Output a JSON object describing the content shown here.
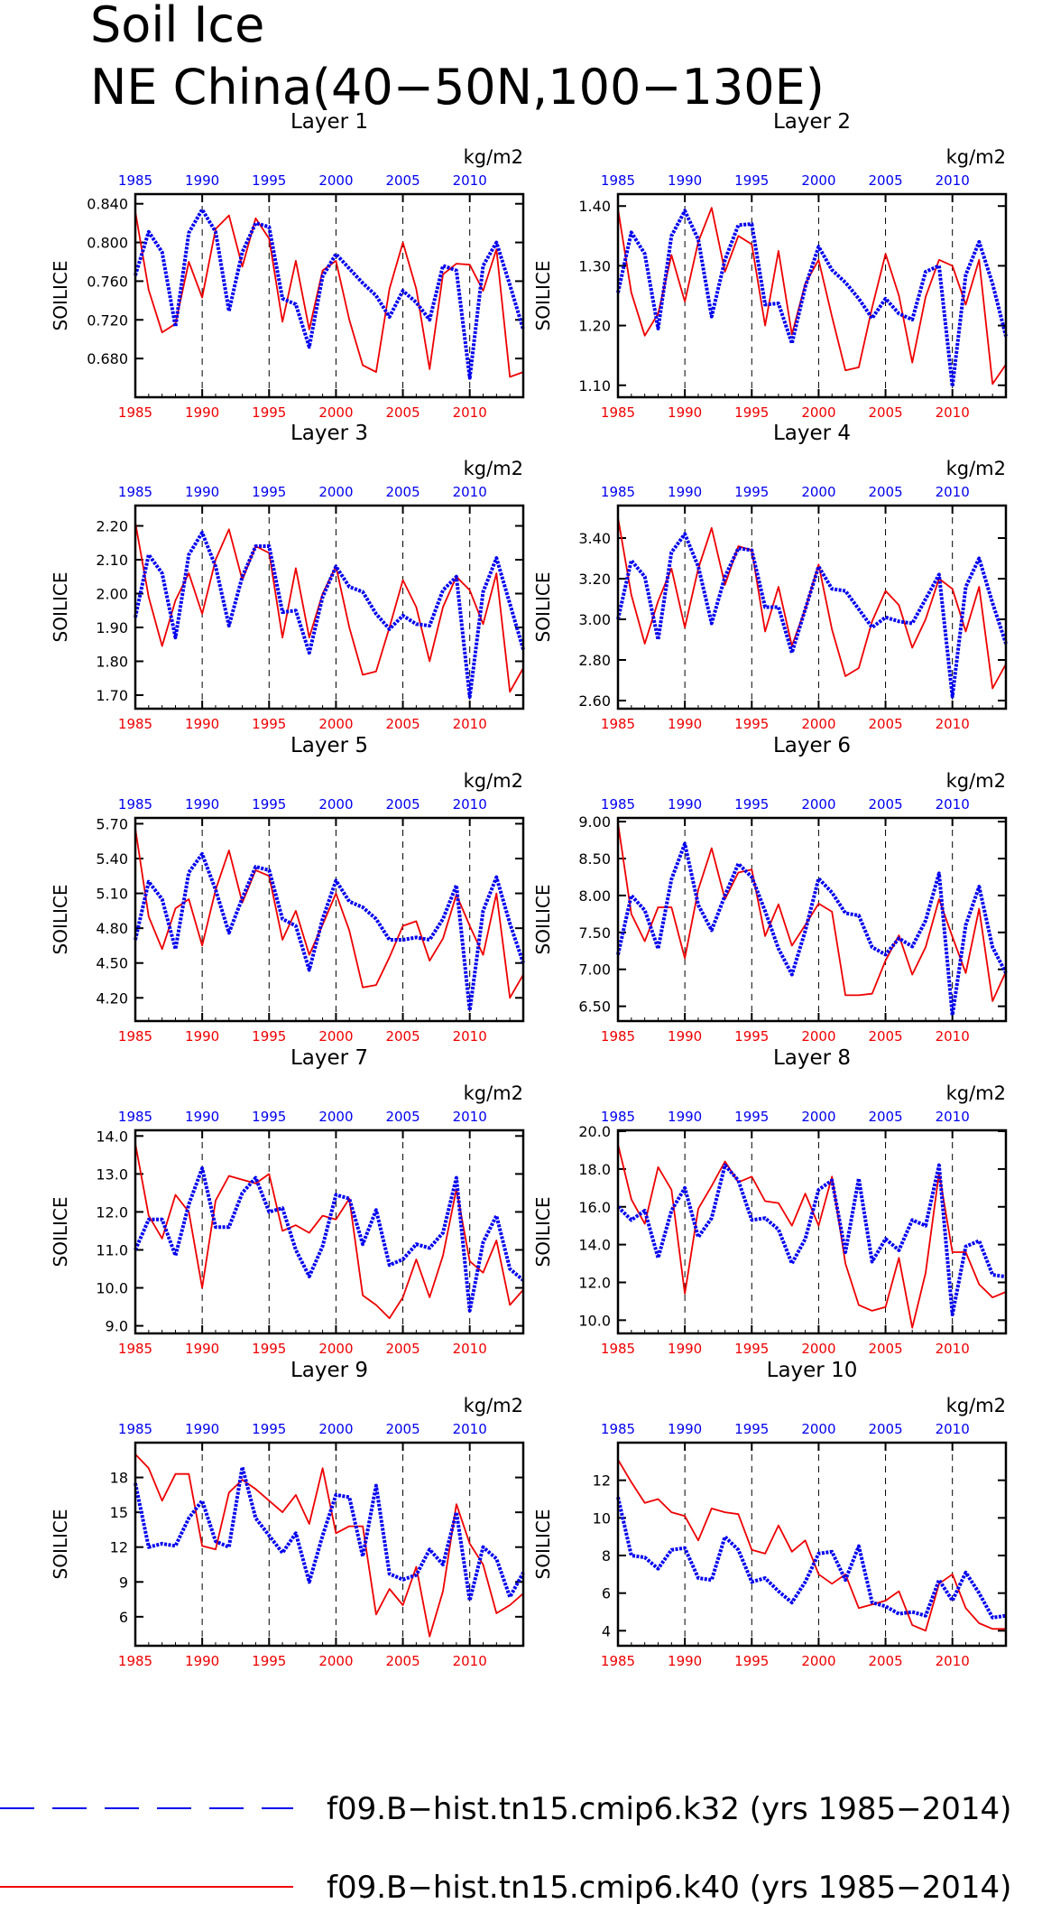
{
  "title": {
    "line1": "Soil Ice",
    "line2": "NE China(40−50N,100−130E)"
  },
  "legend": [
    {
      "label": "f09.B−hist.tn15.cmip6.k32 (yrs 1985−2014)",
      "color": "#0000ee",
      "style": "dashed"
    },
    {
      "label": "f09.B−hist.tn15.cmip6.k40 (yrs 1985−2014)",
      "color": "#ee0000",
      "style": "solid"
    }
  ],
  "chart_data": [
    {
      "type": "line",
      "title": "Layer 1",
      "ylabel": "SOILICE",
      "units": "kg/m2",
      "x_start": 1985,
      "xlim": [
        1985,
        2014
      ],
      "xticks": [
        "1985",
        "1990",
        "1995",
        "2000",
        "2005",
        "2010"
      ],
      "ylim": [
        0.64,
        0.85
      ],
      "yticks": [
        "0.680",
        "0.720",
        "0.760",
        "0.800",
        "0.840"
      ],
      "series": [
        {
          "color": "#0000ee",
          "values": [
            0.766,
            0.811,
            0.79,
            0.713,
            0.81,
            0.834,
            0.811,
            0.729,
            0.79,
            0.82,
            0.816,
            0.742,
            0.736,
            0.692,
            0.765,
            0.788,
            0.773,
            0.758,
            0.745,
            0.723,
            0.75,
            0.738,
            0.72,
            0.776,
            0.771,
            0.66,
            0.776,
            0.8,
            0.756,
            0.71
          ]
        },
        {
          "color": "#ee0000",
          "values": [
            0.832,
            0.751,
            0.707,
            0.716,
            0.78,
            0.743,
            0.814,
            0.828,
            0.775,
            0.825,
            0.804,
            0.718,
            0.781,
            0.71,
            0.771,
            0.781,
            0.72,
            0.673,
            0.666,
            0.752,
            0.8,
            0.752,
            0.669,
            0.767,
            0.778,
            0.777,
            0.75,
            0.793,
            0.661,
            0.666
          ]
        }
      ]
    },
    {
      "type": "line",
      "title": "Layer 2",
      "ylabel": "SOILICE",
      "units": "kg/m2",
      "x_start": 1985,
      "xlim": [
        1985,
        2014
      ],
      "xticks": [
        "1985",
        "1990",
        "1995",
        "2000",
        "2005",
        "2010"
      ],
      "ylim": [
        1.08,
        1.42
      ],
      "yticks": [
        "1.10",
        "1.20",
        "1.30",
        "1.40"
      ],
      "series": [
        {
          "color": "#0000ee",
          "values": [
            1.255,
            1.356,
            1.32,
            1.195,
            1.35,
            1.392,
            1.344,
            1.215,
            1.31,
            1.368,
            1.37,
            1.235,
            1.237,
            1.17,
            1.265,
            1.332,
            1.293,
            1.272,
            1.245,
            1.212,
            1.245,
            1.22,
            1.21,
            1.29,
            1.3,
            1.098,
            1.285,
            1.34,
            1.27,
            1.182
          ]
        },
        {
          "color": "#ee0000",
          "values": [
            1.395,
            1.255,
            1.183,
            1.22,
            1.318,
            1.24,
            1.34,
            1.397,
            1.29,
            1.35,
            1.336,
            1.2,
            1.325,
            1.185,
            1.27,
            1.31,
            1.215,
            1.125,
            1.13,
            1.23,
            1.32,
            1.25,
            1.138,
            1.248,
            1.31,
            1.3,
            1.235,
            1.31,
            1.102,
            1.135
          ]
        }
      ]
    },
    {
      "type": "line",
      "title": "Layer 3",
      "ylabel": "SOILICE",
      "units": "kg/m2",
      "x_start": 1985,
      "xlim": [
        1985,
        2014
      ],
      "xticks": [
        "1985",
        "1990",
        "1995",
        "2000",
        "2005",
        "2010"
      ],
      "ylim": [
        1.66,
        2.26
      ],
      "yticks": [
        "1.70",
        "1.80",
        "1.90",
        "2.00",
        "2.10",
        "2.20"
      ],
      "series": [
        {
          "color": "#0000ee",
          "values": [
            1.93,
            2.115,
            2.06,
            1.87,
            2.115,
            2.18,
            2.08,
            1.905,
            2.05,
            2.14,
            2.14,
            1.945,
            1.95,
            1.825,
            1.99,
            2.08,
            2.02,
            2.005,
            1.94,
            1.895,
            1.935,
            1.91,
            1.905,
            2.01,
            2.05,
            1.695,
            2.005,
            2.105,
            1.97,
            1.835
          ]
        },
        {
          "color": "#ee0000",
          "values": [
            2.21,
            1.99,
            1.845,
            1.98,
            2.06,
            1.94,
            2.1,
            2.19,
            2.04,
            2.14,
            2.12,
            1.87,
            2.075,
            1.87,
            2.0,
            2.08,
            1.9,
            1.76,
            1.77,
            1.9,
            2.04,
            1.96,
            1.8,
            1.96,
            2.05,
            2.01,
            1.91,
            2.06,
            1.71,
            1.78
          ]
        }
      ]
    },
    {
      "type": "line",
      "title": "Layer 4",
      "ylabel": "SOILICE",
      "units": "kg/m2",
      "x_start": 1985,
      "xlim": [
        1985,
        2014
      ],
      "xticks": [
        "1985",
        "1990",
        "1995",
        "2000",
        "2005",
        "2010"
      ],
      "ylim": [
        2.56,
        3.56
      ],
      "yticks": [
        "2.60",
        "2.80",
        "3.00",
        "3.20",
        "3.40"
      ],
      "series": [
        {
          "color": "#0000ee",
          "values": [
            3.0,
            3.29,
            3.21,
            2.9,
            3.33,
            3.42,
            3.26,
            2.98,
            3.21,
            3.35,
            3.34,
            3.06,
            3.06,
            2.835,
            3.05,
            3.26,
            3.15,
            3.14,
            3.05,
            2.96,
            3.01,
            2.99,
            2.98,
            3.1,
            3.22,
            2.62,
            3.16,
            3.3,
            3.08,
            2.88
          ]
        },
        {
          "color": "#ee0000",
          "values": [
            3.5,
            3.12,
            2.88,
            3.09,
            3.25,
            2.96,
            3.25,
            3.45,
            3.17,
            3.36,
            3.34,
            2.94,
            3.16,
            2.87,
            3.05,
            3.27,
            2.95,
            2.72,
            2.76,
            2.99,
            3.14,
            3.07,
            2.86,
            3.0,
            3.2,
            3.15,
            2.94,
            3.16,
            2.66,
            2.78
          ]
        }
      ]
    },
    {
      "type": "line",
      "title": "Layer 5",
      "ylabel": "SOILICE",
      "units": "kg/m2",
      "x_start": 1985,
      "xlim": [
        1985,
        2014
      ],
      "xticks": [
        "1985",
        "1990",
        "1995",
        "2000",
        "2005",
        "2010"
      ],
      "ylim": [
        4.0,
        5.75
      ],
      "yticks": [
        "4.20",
        "4.50",
        "4.80",
        "5.10",
        "5.40",
        "5.70"
      ],
      "series": [
        {
          "color": "#0000ee",
          "values": [
            4.7,
            5.2,
            5.05,
            4.62,
            5.28,
            5.44,
            5.13,
            4.76,
            5.06,
            5.33,
            5.3,
            4.88,
            4.82,
            4.44,
            4.88,
            5.21,
            5.03,
            4.98,
            4.88,
            4.7,
            4.7,
            4.72,
            4.7,
            4.88,
            5.17,
            4.09,
            4.95,
            5.24,
            4.84,
            4.5
          ]
        },
        {
          "color": "#ee0000",
          "values": [
            5.66,
            4.9,
            4.62,
            4.97,
            5.05,
            4.65,
            5.13,
            5.47,
            5.02,
            5.3,
            5.25,
            4.7,
            4.95,
            4.57,
            4.83,
            5.1,
            4.78,
            4.29,
            4.31,
            4.55,
            4.82,
            4.86,
            4.52,
            4.71,
            5.09,
            4.82,
            4.57,
            5.1,
            4.2,
            4.4
          ]
        }
      ]
    },
    {
      "type": "line",
      "title": "Layer 6",
      "ylabel": "SOILICE",
      "units": "kg/m2",
      "x_start": 1985,
      "xlim": [
        1985,
        2014
      ],
      "xticks": [
        "1985",
        "1990",
        "1995",
        "2000",
        "2005",
        "2010"
      ],
      "ylim": [
        6.3,
        9.05
      ],
      "yticks": [
        "6.50",
        "7.00",
        "7.50",
        "8.00",
        "8.50",
        "9.00"
      ],
      "series": [
        {
          "color": "#0000ee",
          "values": [
            7.2,
            8.0,
            7.8,
            7.28,
            8.22,
            8.7,
            7.87,
            7.53,
            8.0,
            8.43,
            8.25,
            7.79,
            7.28,
            6.93,
            7.52,
            8.23,
            8.04,
            7.76,
            7.73,
            7.3,
            7.2,
            7.42,
            7.31,
            7.66,
            8.3,
            6.38,
            7.6,
            8.12,
            7.3,
            6.95
          ]
        },
        {
          "color": "#ee0000",
          "values": [
            8.98,
            7.75,
            7.38,
            7.84,
            7.84,
            7.15,
            8.08,
            8.64,
            7.95,
            8.31,
            8.35,
            7.45,
            7.88,
            7.32,
            7.6,
            7.89,
            7.78,
            6.65,
            6.65,
            6.67,
            7.12,
            7.46,
            6.93,
            7.3,
            7.95,
            7.44,
            6.95,
            7.82,
            6.57,
            6.97
          ]
        }
      ]
    },
    {
      "type": "line",
      "title": "Layer 7",
      "ylabel": "SOILICE",
      "units": "kg/m2",
      "x_start": 1985,
      "xlim": [
        1985,
        2014
      ],
      "xticks": [
        "1985",
        "1990",
        "1995",
        "2000",
        "2005",
        "2010"
      ],
      "ylim": [
        8.8,
        14.15
      ],
      "yticks": [
        "9.0",
        "10.0",
        "11.0",
        "12.0",
        "13.0",
        "14.0"
      ],
      "series": [
        {
          "color": "#0000ee",
          "values": [
            11.0,
            11.8,
            11.8,
            10.85,
            12.2,
            13.15,
            11.6,
            11.6,
            12.5,
            12.9,
            12.0,
            12.1,
            11.0,
            10.3,
            11.1,
            12.45,
            12.35,
            11.15,
            12.05,
            10.6,
            10.75,
            11.15,
            11.05,
            11.45,
            12.9,
            9.4,
            11.2,
            11.9,
            10.5,
            10.2
          ]
        },
        {
          "color": "#ee0000",
          "values": [
            13.8,
            11.9,
            11.3,
            12.45,
            12.0,
            10.0,
            12.3,
            12.95,
            12.85,
            12.75,
            13.0,
            11.5,
            11.65,
            11.45,
            11.9,
            11.8,
            12.35,
            9.8,
            9.55,
            9.2,
            9.75,
            10.75,
            9.75,
            10.85,
            12.6,
            10.7,
            10.4,
            11.25,
            9.55,
            9.95
          ]
        }
      ]
    },
    {
      "type": "line",
      "title": "Layer 8",
      "ylabel": "SOILICE",
      "units": "kg/m2",
      "x_start": 1985,
      "xlim": [
        1985,
        2014
      ],
      "xticks": [
        "1985",
        "1990",
        "1995",
        "2000",
        "2005",
        "2010"
      ],
      "ylim": [
        9.3,
        20.05
      ],
      "yticks": [
        "10.0",
        "12.0",
        "14.0",
        "16.0",
        "18.0",
        "20.0"
      ],
      "series": [
        {
          "color": "#0000ee",
          "values": [
            16.0,
            15.3,
            15.8,
            13.3,
            15.8,
            17.0,
            14.4,
            15.4,
            18.2,
            17.4,
            15.3,
            15.4,
            14.8,
            13.0,
            14.3,
            16.9,
            17.4,
            13.6,
            17.5,
            13.1,
            14.3,
            13.7,
            15.3,
            15.0,
            18.2,
            10.3,
            13.9,
            14.2,
            12.4,
            12.3
          ]
        },
        {
          "color": "#ee0000",
          "values": [
            19.3,
            16.4,
            15.1,
            18.1,
            16.9,
            11.4,
            15.9,
            17.1,
            18.4,
            17.3,
            17.6,
            16.3,
            16.2,
            15.0,
            16.7,
            15.0,
            17.6,
            13.0,
            10.8,
            10.5,
            10.7,
            13.3,
            9.6,
            12.5,
            17.8,
            13.6,
            13.6,
            11.9,
            11.2,
            11.5
          ]
        }
      ]
    },
    {
      "type": "line",
      "title": "Layer 9",
      "ylabel": "SOILICE",
      "units": "kg/m2",
      "x_start": 1985,
      "xlim": [
        1985,
        2014
      ],
      "xticks": [
        "1985",
        "1990",
        "1995",
        "2000",
        "2005",
        "2010"
      ],
      "ylim": [
        3.5,
        21.0
      ],
      "yticks": [
        "6",
        "9",
        "12",
        "15",
        "18"
      ],
      "series": [
        {
          "color": "#0000ee",
          "values": [
            17.5,
            12.0,
            12.3,
            12.1,
            14.5,
            16.0,
            12.5,
            12.0,
            18.9,
            14.5,
            13.0,
            11.5,
            13.2,
            9.0,
            13.0,
            16.5,
            16.3,
            11.2,
            17.3,
            9.7,
            9.2,
            9.6,
            11.8,
            10.5,
            15.0,
            7.4,
            12.0,
            11.0,
            7.7,
            9.8
          ]
        },
        {
          "color": "#ee0000",
          "values": [
            20.0,
            18.8,
            16.0,
            18.3,
            18.3,
            12.1,
            11.8,
            16.7,
            17.8,
            17.0,
            16.0,
            15.0,
            16.5,
            14.0,
            18.8,
            13.2,
            13.8,
            13.8,
            6.2,
            8.4,
            7.0,
            10.3,
            4.3,
            8.2,
            15.7,
            12.3,
            10.5,
            6.3,
            7.0,
            8.0
          ]
        }
      ]
    },
    {
      "type": "line",
      "title": "Layer 10",
      "ylabel": "SOILICE",
      "units": "kg/m2",
      "x_start": 1985,
      "xlim": [
        1985,
        2014
      ],
      "xticks": [
        "1985",
        "1990",
        "1995",
        "2000",
        "2005",
        "2010"
      ],
      "ylim": [
        3.2,
        14.0
      ],
      "yticks": [
        "4",
        "6",
        "8",
        "10",
        "12"
      ],
      "series": [
        {
          "color": "#0000ee",
          "values": [
            11.1,
            8.0,
            7.9,
            7.3,
            8.3,
            8.4,
            6.8,
            6.7,
            9.0,
            8.3,
            6.6,
            6.8,
            6.1,
            5.5,
            6.6,
            8.1,
            8.2,
            6.7,
            8.5,
            5.5,
            5.3,
            4.9,
            5.0,
            4.8,
            6.7,
            5.6,
            7.1,
            6.0,
            4.7,
            4.8
          ]
        },
        {
          "color": "#ee0000",
          "values": [
            13.1,
            11.9,
            10.8,
            11.0,
            10.3,
            10.1,
            8.8,
            10.5,
            10.3,
            10.2,
            8.3,
            8.1,
            9.6,
            8.2,
            8.8,
            7.0,
            6.5,
            7.0,
            5.2,
            5.4,
            5.6,
            6.1,
            4.3,
            4.0,
            6.5,
            7.0,
            5.2,
            4.4,
            4.1,
            4.1
          ]
        }
      ]
    }
  ]
}
